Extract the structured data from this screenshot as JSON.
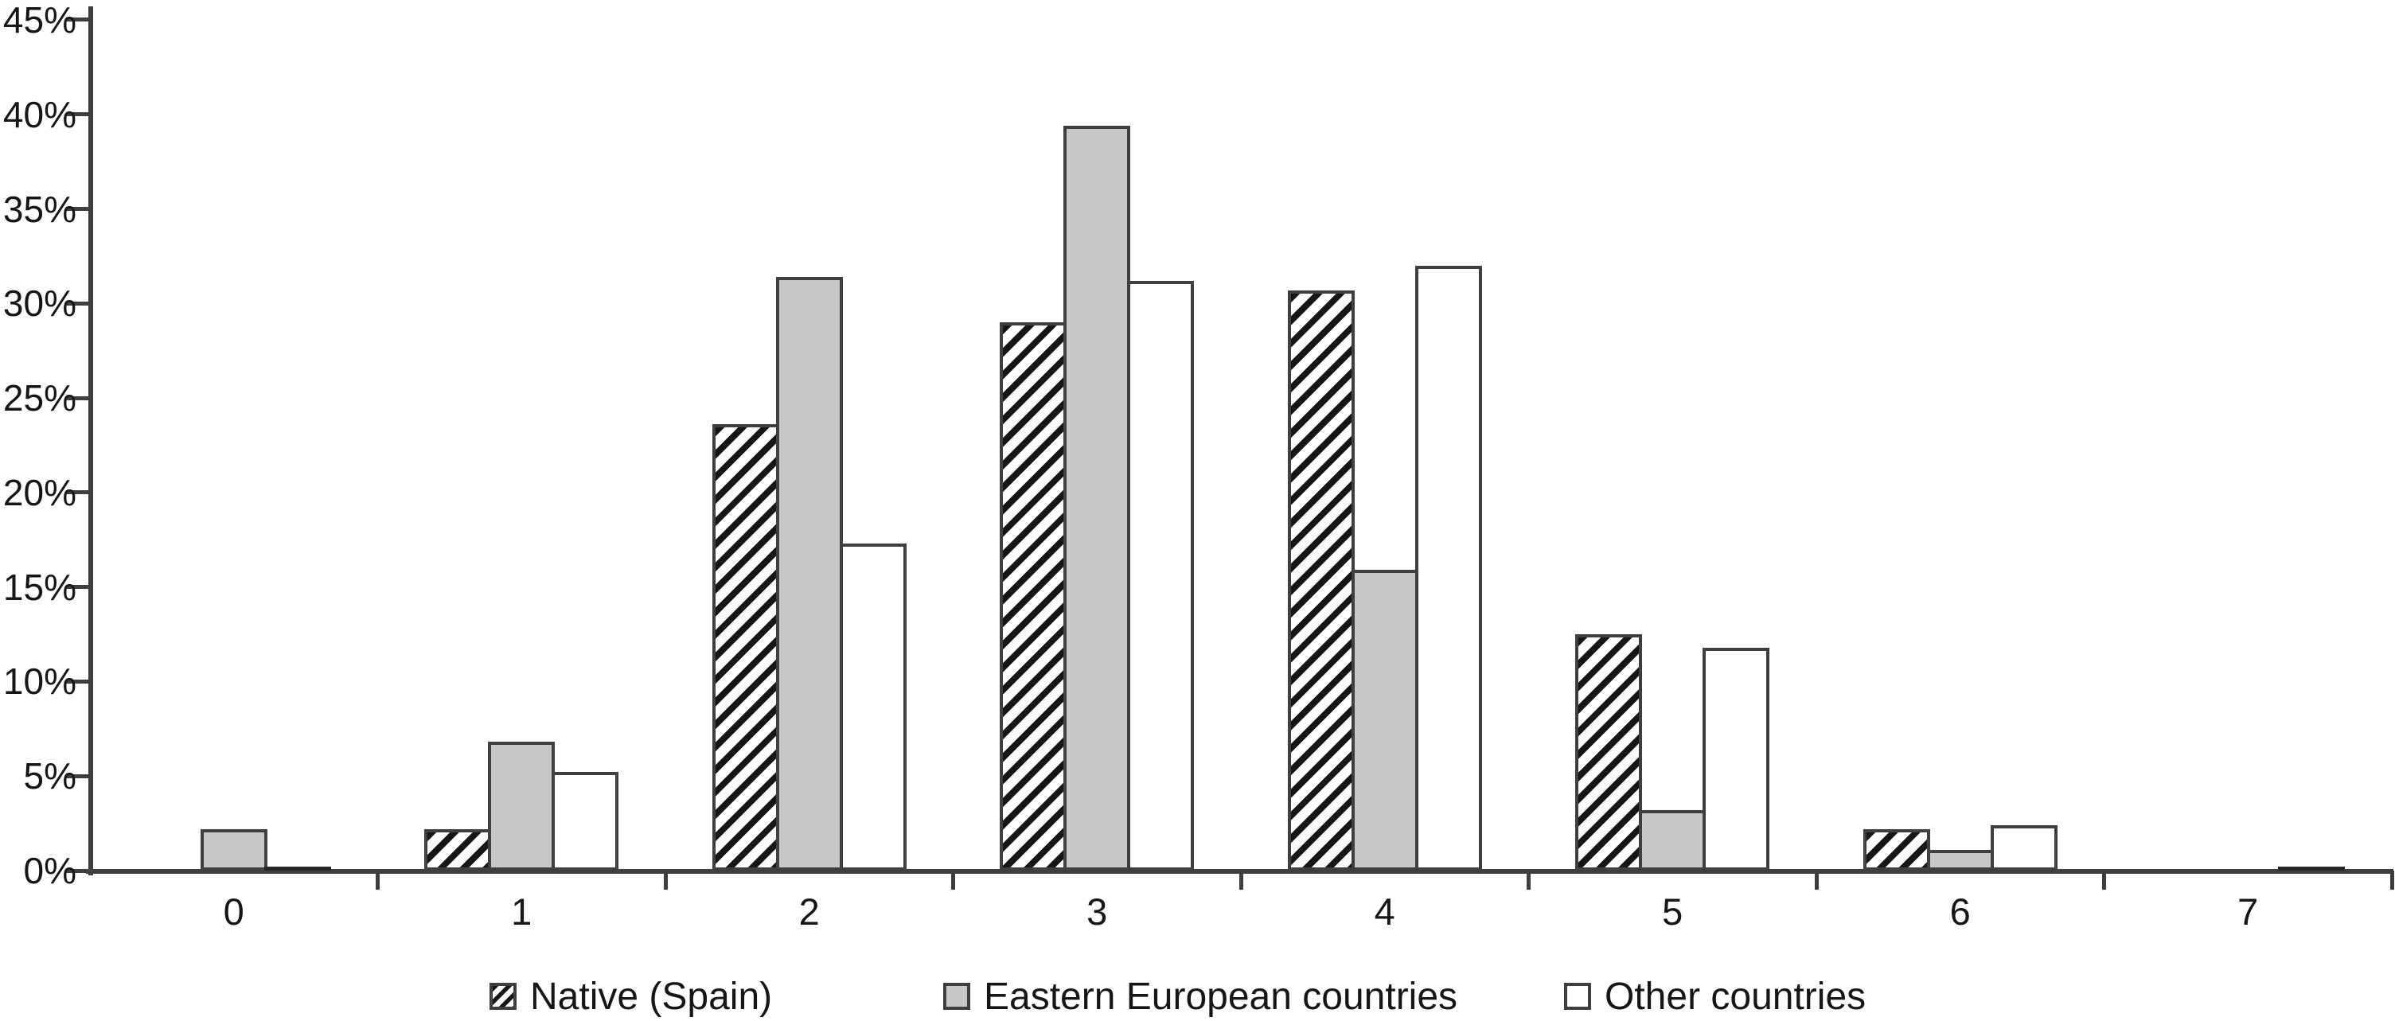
{
  "figure": {
    "background": "#ffffff",
    "colors": {
      "axis": "#3f3f3f",
      "bar_border": "#3f3f3f",
      "hatch_foreground": "#161616",
      "gray_fill": "#c8c8c8",
      "white_fill": "#ffffff",
      "text": "#161616"
    }
  },
  "axes": {
    "y_tick_labels": [
      "0%",
      "5%",
      "10%",
      "15%",
      "20%",
      "25%",
      "30%",
      "35%",
      "40%",
      "45%"
    ],
    "x_tick_labels": [
      "0",
      "1",
      "2",
      "3",
      "4",
      "5",
      "6",
      "7"
    ]
  },
  "legend": {
    "items": [
      {
        "label": "Native (Spain)",
        "swatch": "hatched"
      },
      {
        "label": "Eastern European countries",
        "swatch": "gray"
      },
      {
        "label": "Other countries",
        "swatch": "white"
      }
    ]
  },
  "chart_data": {
    "type": "bar",
    "title": "",
    "xlabel": "",
    "ylabel": "",
    "ylim": [
      0,
      45
    ],
    "y_step": 5,
    "grid": false,
    "legend_position": "bottom",
    "categories": [
      "0",
      "1",
      "2",
      "3",
      "4",
      "5",
      "6",
      "7"
    ],
    "value_unit": "%",
    "series": [
      {
        "name": "Native (Spain)",
        "style": "hatched",
        "values": [
          0,
          2.2,
          23.6,
          29.0,
          30.7,
          12.5,
          2.2,
          0
        ]
      },
      {
        "name": "Eastern European countries",
        "style": "gray",
        "values": [
          2.2,
          6.8,
          31.4,
          39.4,
          15.9,
          3.2,
          1.1,
          0
        ]
      },
      {
        "name": "Other countries",
        "style": "white",
        "values": [
          0.1,
          5.2,
          17.3,
          31.2,
          32.0,
          11.8,
          2.4,
          0.1
        ]
      }
    ]
  }
}
